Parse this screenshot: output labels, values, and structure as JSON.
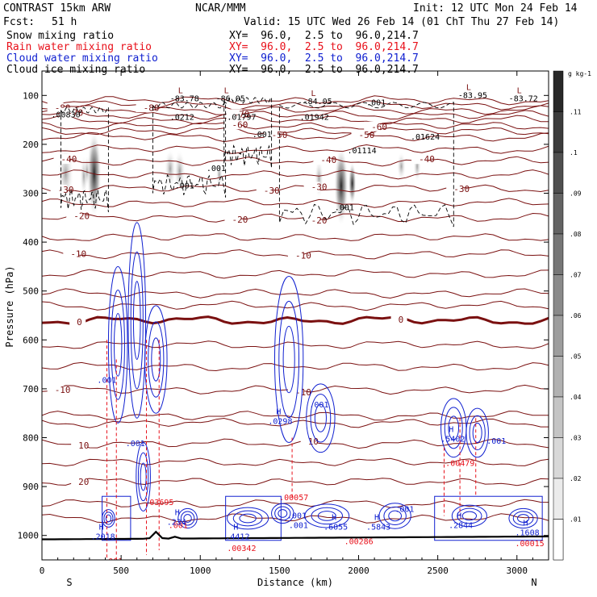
{
  "header": {
    "model": "CONTRAST 15km ARW",
    "org": "NCAR/MMM",
    "init": "Init: 12 UTC Mon 24 Feb 14",
    "fcst_label": "Fcst:",
    "fcst_value": "51 h",
    "valid": "Valid: 15 UTC Wed 26 Feb 14 (01 ChT Thu 27 Feb 14)"
  },
  "fields": [
    {
      "name": "Snow mixing ratio",
      "xy": "XY=  96.0,  2.5 to  96.0,214.7",
      "color": "#000000"
    },
    {
      "name": "Rain water mixing ratio",
      "xy": "XY=  96.0,  2.5 to  96.0,214.7",
      "color": "#e8101a"
    },
    {
      "name": "Cloud water mixing ratio",
      "xy": "XY=  96.0,  2.5 to  96.0,214.7",
      "color": "#1020d0"
    },
    {
      "name": "Cloud ice mixing ratio",
      "xy": "XY=  96.0,  2.5 to  96.0,214.7",
      "color": "#000000"
    }
  ],
  "colors": {
    "temperature": "#7a1010",
    "zero_isotherm": "#7a1010",
    "rain": "#e8101a",
    "cloud_water": "#1020d0",
    "snow_ice": "#000000"
  },
  "chart_data": {
    "type": "cross-section contour",
    "xlabel": "Distance (km)",
    "ylabel": "Pressure (hPa)",
    "xlim": [
      0,
      3200
    ],
    "ylim": [
      1050,
      50
    ],
    "x_ticks": [
      0,
      500,
      1000,
      1500,
      2000,
      2500,
      3000
    ],
    "y_ticks": [
      100,
      200,
      300,
      400,
      500,
      600,
      700,
      800,
      900,
      1000
    ],
    "end_labels": {
      "left": "S",
      "right": "N"
    },
    "temperature_contours": [
      {
        "label": "-80",
        "p": 120
      },
      {
        "label": "-70",
        "p": 140
      },
      {
        "label": "-60",
        "p": 162
      },
      {
        "label": "-50",
        "p": 185
      },
      {
        "label": "-40",
        "p": 235
      },
      {
        "label": "-30",
        "p": 290
      },
      {
        "label": "-20",
        "p": 350
      },
      {
        "label": "-10",
        "p": 425
      },
      {
        "label": "0",
        "p": 560
      },
      {
        "label": "-10",
        "p": 702
      },
      {
        "label": "10",
        "p": 812
      },
      {
        "label": "20",
        "p": 890
      }
    ],
    "cloud_ice_labels": [
      {
        "text": ".00830",
        "x": 130,
        "p": 145
      },
      {
        "text": ".0212",
        "x": 880,
        "p": 150
      },
      {
        "text": ".01797",
        "x": 1240,
        "p": 150
      },
      {
        "text": ".01942",
        "x": 1700,
        "p": 150
      },
      {
        "text": ".01114",
        "x": 2000,
        "p": 218
      },
      {
        "text": ".01624",
        "x": 2400,
        "p": 190
      },
      {
        "text": ".001",
        "x": 1400,
        "p": 185
      },
      {
        "text": ".001",
        "x": 1110,
        "p": 255
      },
      {
        "text": ".001",
        "x": 910,
        "p": 290
      },
      {
        "text": ".001",
        "x": 1920,
        "p": 335
      },
      {
        "text": ".001",
        "x": 2120,
        "p": 120
      }
    ],
    "rain_labels": [
      {
        "text": ".03695",
        "x": 720,
        "p": 938
      },
      {
        "text": ".00057",
        "x": 1570,
        "p": 928
      },
      {
        "text": ".00479",
        "x": 2620,
        "p": 858
      },
      {
        "text": ".00342",
        "x": 1240,
        "p": 1032
      },
      {
        "text": ".00286",
        "x": 1980,
        "p": 1018
      },
      {
        "text": ".00015",
        "x": 3060,
        "p": 1022
      },
      {
        "text": ".001",
        "x": 460,
        "p": 1058
      },
      {
        "text": ".001",
        "x": 870,
        "p": 985
      }
    ],
    "cloud_water_labels": [
      {
        "text": ".2018",
        "x": 380,
        "p": 1008
      },
      {
        "text": ".234",
        "x": 860,
        "p": 978
      },
      {
        "text": ".4412",
        "x": 1230,
        "p": 1008
      },
      {
        "text": ".6055",
        "x": 1850,
        "p": 988
      },
      {
        "text": ".5843",
        "x": 2120,
        "p": 988
      },
      {
        "text": ".2844",
        "x": 2640,
        "p": 985
      },
      {
        "text": ".1608",
        "x": 3060,
        "p": 1000
      },
      {
        "text": ".0298",
        "x": 1500,
        "p": 772
      },
      {
        "text": ".5402",
        "x": 2590,
        "p": 808
      },
      {
        "text": ".001",
        "x": 420,
        "p": 688
      },
      {
        "text": ".001",
        "x": 600,
        "p": 817
      },
      {
        "text": ".001",
        "x": 1630,
        "p": 985
      },
      {
        "text": ".001",
        "x": 1760,
        "p": 738
      },
      {
        "text": ".001",
        "x": 2300,
        "p": 952
      },
      {
        "text": ".001",
        "x": 2880,
        "p": 812
      },
      {
        "text": ".001",
        "x": 1620,
        "p": 965
      }
    ],
    "l_labels": [
      {
        "text": "-83.78",
        "x": 880,
        "p": 112
      },
      {
        "text": "-86.05",
        "x": 1170,
        "p": 112
      },
      {
        "text": "-84.05",
        "x": 1720,
        "p": 118
      },
      {
        "text": "-83.95",
        "x": 2700,
        "p": 105
      },
      {
        "text": "-83.72",
        "x": 3020,
        "p": 112
      }
    ],
    "colorbar": {
      "unit": "g kg-1",
      "ticks": [
        ".11",
        ".1",
        ".09",
        ".08",
        ".07",
        ".06",
        ".05",
        ".04",
        ".03",
        ".02",
        ".01"
      ]
    }
  }
}
